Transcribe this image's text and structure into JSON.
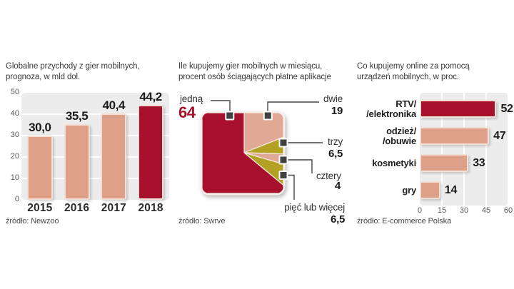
{
  "page": {
    "background": "#ffffff"
  },
  "colors": {
    "crimson": "#a8112e",
    "salmon": "#dfa089",
    "pie_salmon": "#e0a995",
    "olive": "#b3a124",
    "plot_background": "#ececec",
    "marker": "#414141"
  },
  "chart_data": [
    {
      "type": "bar",
      "title_lines": [
        "Globalne przychody z gier mobilnych,",
        "prognoza, w mld dol."
      ],
      "categories": [
        "2015",
        "2016",
        "2017",
        "2018"
      ],
      "values": [
        30.0,
        35.5,
        40.4,
        44.2
      ],
      "value_labels": [
        "30,0",
        "35,5",
        "40,4",
        "44,2"
      ],
      "bar_colors": [
        "#dfa089",
        "#dfa089",
        "#dfa089",
        "#a8112e"
      ],
      "ylim": [
        0,
        50
      ],
      "yticks": [
        0,
        10,
        20,
        30,
        40,
        50
      ],
      "grid": true,
      "legend": false,
      "source": "źródło: Newzoo"
    },
    {
      "type": "pie",
      "variant": "square",
      "title_lines": [
        "Ile kupujemy gier mobilnych w miesiącu,",
        "procent osób ściągających płatne aplikacje"
      ],
      "labels": [
        "jedną",
        "dwie",
        "trzy",
        "cztery",
        "pięć lub więcej"
      ],
      "values": [
        64,
        19,
        6.5,
        4,
        6.5
      ],
      "value_labels": [
        "64",
        "19",
        "6,5",
        "4",
        "6,5"
      ],
      "colors": [
        "#a8112e",
        "#e0a995",
        "#b3a124",
        "#e0a995",
        "#b3a124"
      ],
      "source": "źródło: Swrve"
    },
    {
      "type": "bar",
      "orientation": "horizontal",
      "title_lines": [
        "Co kupujemy online za pomocą",
        "urządzeń mobilnych, w proc."
      ],
      "categories": [
        "RTV/elektronika",
        "odzież/obuwie",
        "kosmetyki",
        "gry"
      ],
      "category_lines": [
        [
          "RTV/",
          "/elektronika"
        ],
        [
          "odzież/",
          "/obuwie"
        ],
        [
          "kosmetyki"
        ],
        [
          "gry"
        ]
      ],
      "values": [
        52,
        47,
        33,
        14
      ],
      "value_labels": [
        "52",
        "47",
        "33",
        "14"
      ],
      "bar_colors": [
        "#a8112e",
        "#dfa089",
        "#dfa089",
        "#dfa089"
      ],
      "xlim": [
        0,
        60
      ],
      "xticks": [
        0,
        15,
        30,
        45,
        60
      ],
      "grid": true,
      "legend": false,
      "source": "źródło: E-commerce Polska"
    }
  ]
}
